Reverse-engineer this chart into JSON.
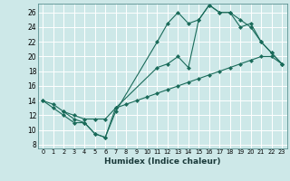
{
  "bg_color": "#cde8e8",
  "grid_color": "#b0d4d4",
  "line_color": "#1a6b5a",
  "xlabel": "Humidex (Indice chaleur)",
  "ylabel_ticks": [
    8,
    10,
    12,
    14,
    16,
    18,
    20,
    22,
    24,
    26
  ],
  "xlim": [
    -0.5,
    23.5
  ],
  "ylim": [
    7.5,
    27.2
  ],
  "xticks": [
    0,
    1,
    2,
    3,
    4,
    5,
    6,
    7,
    8,
    9,
    10,
    11,
    12,
    13,
    14,
    15,
    16,
    17,
    18,
    19,
    20,
    21,
    22,
    23
  ],
  "line1_x": [
    0,
    1,
    2,
    3,
    4,
    5,
    6,
    7,
    11,
    12,
    13,
    14,
    15,
    16,
    17,
    18,
    19,
    20,
    21,
    22,
    23
  ],
  "line1_y": [
    14,
    13,
    12,
    11,
    11,
    9.5,
    9,
    12.5,
    22,
    24.5,
    26,
    24.5,
    25,
    27,
    26,
    26,
    25,
    24,
    22,
    20.5,
    19
  ],
  "line2_x": [
    0,
    1,
    2,
    3,
    4,
    5,
    6,
    7,
    8,
    9,
    10,
    11,
    12,
    13,
    14,
    15,
    16,
    17,
    18,
    19,
    20,
    21,
    22,
    23
  ],
  "line2_y": [
    14,
    13.5,
    12.5,
    12,
    11.5,
    11.5,
    11.5,
    13,
    13.5,
    14,
    14.5,
    15,
    15.5,
    16,
    16.5,
    17,
    17.5,
    18,
    18.5,
    19,
    19.5,
    20,
    20,
    19
  ],
  "line3_x": [
    2,
    3,
    4,
    5,
    6,
    7,
    11,
    12,
    13,
    14,
    15,
    16,
    17,
    18,
    19,
    20,
    21,
    22,
    23
  ],
  "line3_y": [
    12.5,
    11.5,
    11,
    9.5,
    9,
    13,
    18.5,
    19,
    20,
    18.5,
    25,
    27,
    26,
    26,
    24,
    24.5,
    22,
    20.5,
    19
  ],
  "markersize": 2.5
}
